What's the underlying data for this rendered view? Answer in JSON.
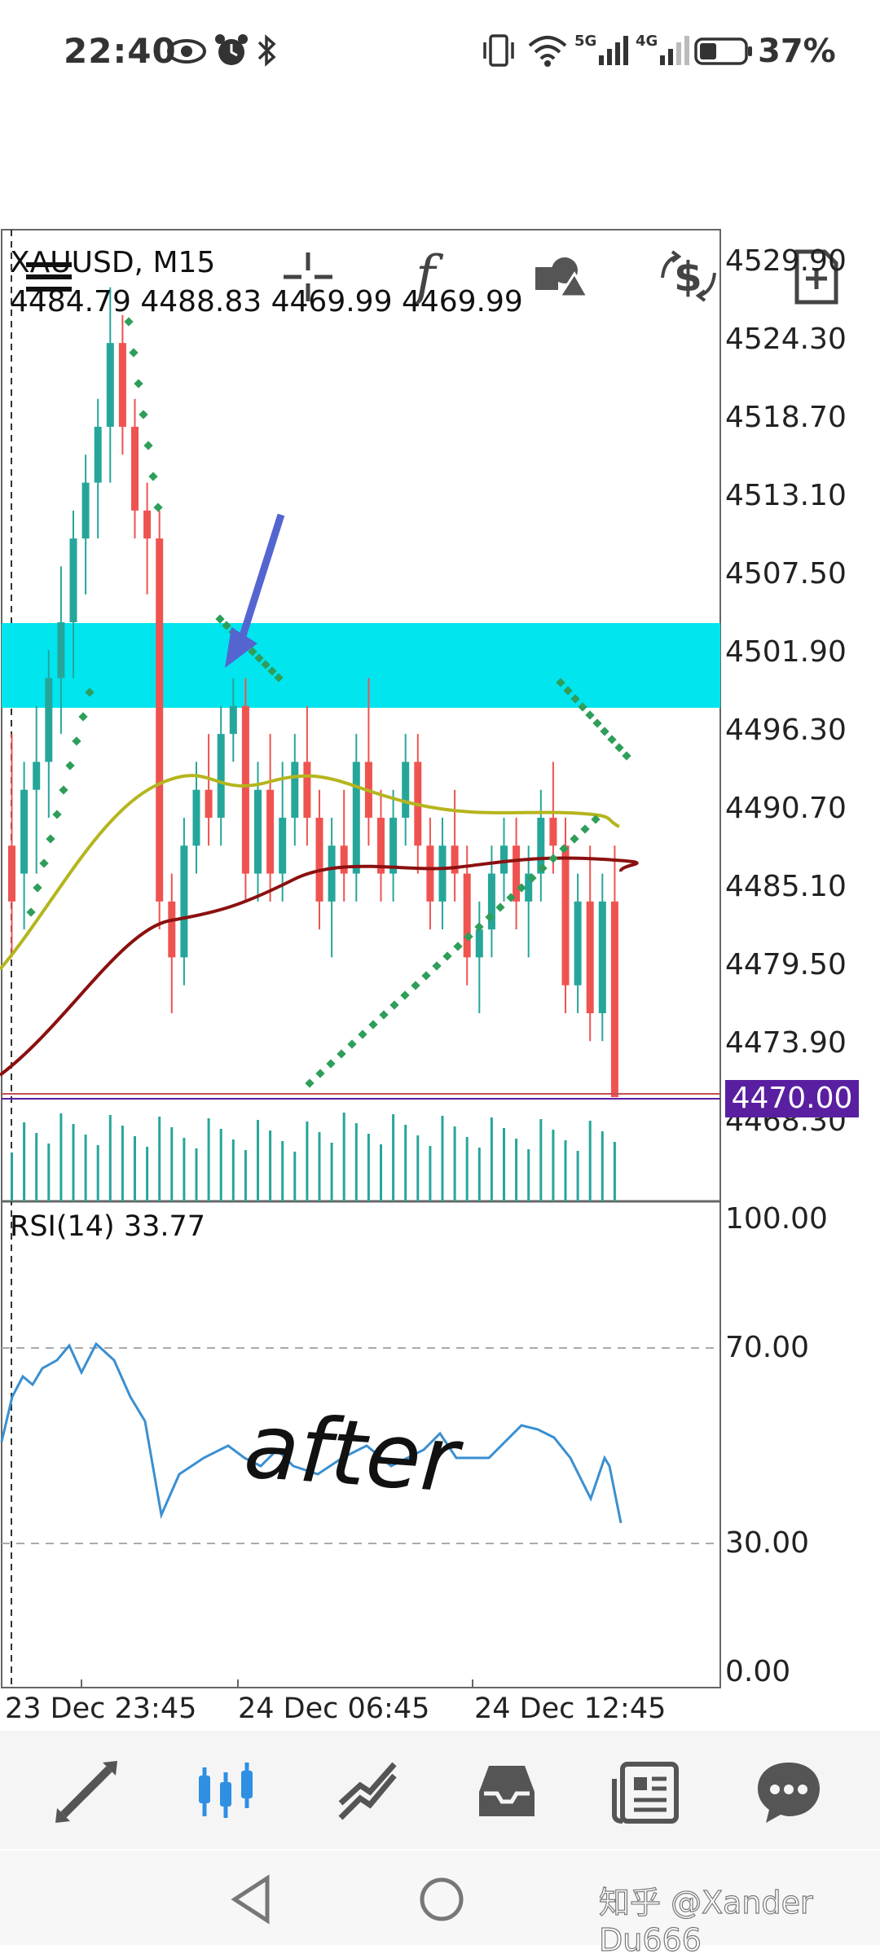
{
  "status_bar": {
    "time": "22:40",
    "battery_percent": "37%",
    "network_1": "5G",
    "network_2": "4G",
    "icons": [
      "eye-icon",
      "alarm-icon",
      "bluetooth-icon",
      "vibrate-icon",
      "wifi-icon",
      "signal-icon",
      "battery-icon"
    ]
  },
  "toolbar": {
    "buttons": [
      "menu-icon",
      "crosshair-icon",
      "indicators-icon",
      "objects-icon",
      "trade-icon",
      "new-order-icon"
    ]
  },
  "chart": {
    "symbol_line": "XAUUSD, M15",
    "ohlc_line": "4484.79 4488.83 4469.99 4469.99",
    "current_price": "4470.00",
    "price_labels": [
      "4529.90",
      "4524.30",
      "4518.70",
      "4513.10",
      "4507.50",
      "4501.90",
      "4496.30",
      "4490.70",
      "4485.10",
      "4479.50",
      "4473.90",
      "4468.30"
    ],
    "rsi_label": "RSI(14) 33.77",
    "rsi_levels": [
      "100.00",
      "70.00",
      "30.00",
      "0.00"
    ],
    "time_labels": [
      "23 Dec 23:45",
      "24 Dec 06:45",
      "24 Dec 12:45"
    ],
    "annotation_text": "after",
    "colors": {
      "bull": "#26a69a",
      "bear": "#ef5350",
      "zone": "#00e5ee",
      "ma_fast": "#b5b51e",
      "ma_slow": "#8b1010",
      "psar": "#2e9e5a",
      "rsi": "#3a8fd1",
      "price_tag": "#5a1fa0",
      "arrow": "#5565d0"
    }
  },
  "chart_data": {
    "type": "candlestick",
    "ylabel": "",
    "ylim": [
      4468.3,
      4529.9
    ],
    "rsi_series": {
      "name": "RSI(14)",
      "last_value": 33.77,
      "levels": [
        70,
        30
      ],
      "ylim": [
        0,
        100
      ]
    },
    "candles_ohlc": [
      [
        4488,
        4496,
        4480,
        4484
      ],
      [
        4486,
        4494,
        4482,
        4492
      ],
      [
        4492,
        4498,
        4486,
        4494
      ],
      [
        4494,
        4502,
        4490,
        4500
      ],
      [
        4500,
        4508,
        4496,
        4504
      ],
      [
        4504,
        4512,
        4500,
        4510
      ],
      [
        4510,
        4516,
        4506,
        4514
      ],
      [
        4514,
        4520,
        4510,
        4518
      ],
      [
        4518,
        4528,
        4514,
        4524
      ],
      [
        4524,
        4526,
        4516,
        4518
      ],
      [
        4518,
        4520,
        4510,
        4512
      ],
      [
        4512,
        4514,
        4506,
        4510
      ],
      [
        4510,
        4512,
        4482,
        4484
      ],
      [
        4484,
        4486,
        4476,
        4480
      ],
      [
        4480,
        4490,
        4478,
        4488
      ],
      [
        4488,
        4494,
        4486,
        4492
      ],
      [
        4492,
        4496,
        4488,
        4490
      ],
      [
        4490,
        4498,
        4488,
        4496
      ],
      [
        4496,
        4500,
        4494,
        4498
      ],
      [
        4498,
        4500,
        4484,
        4486
      ],
      [
        4486,
        4494,
        4484,
        4492
      ],
      [
        4492,
        4496,
        4484,
        4486
      ],
      [
        4486,
        4494,
        4484,
        4490
      ],
      [
        4490,
        4496,
        4488,
        4494
      ],
      [
        4494,
        4498,
        4488,
        4490
      ],
      [
        4490,
        4492,
        4482,
        4484
      ],
      [
        4484,
        4490,
        4480,
        4488
      ],
      [
        4488,
        4492,
        4484,
        4486
      ],
      [
        4486,
        4496,
        4484,
        4494
      ],
      [
        4494,
        4500,
        4488,
        4490
      ],
      [
        4490,
        4492,
        4484,
        4486
      ],
      [
        4486,
        4492,
        4484,
        4490
      ],
      [
        4490,
        4496,
        4488,
        4494
      ],
      [
        4494,
        4496,
        4486,
        4488
      ],
      [
        4488,
        4490,
        4482,
        4484
      ],
      [
        4484,
        4490,
        4482,
        4488
      ],
      [
        4488,
        4492,
        4484,
        4486
      ],
      [
        4486,
        4488,
        4478,
        4480
      ],
      [
        4480,
        4484,
        4476,
        4482
      ],
      [
        4482,
        4488,
        4480,
        4486
      ],
      [
        4486,
        4490,
        4484,
        4488
      ],
      [
        4488,
        4490,
        4482,
        4484
      ],
      [
        4484,
        4488,
        4480,
        4486
      ],
      [
        4486,
        4492,
        4484,
        4490
      ],
      [
        4490,
        4494,
        4486,
        4488
      ],
      [
        4488,
        4490,
        4476,
        4478
      ],
      [
        4478,
        4486,
        4476,
        4484
      ],
      [
        4484,
        4488,
        4474,
        4476
      ],
      [
        4476,
        4486,
        4474,
        4484
      ],
      [
        4484,
        4488,
        4469.99,
        4469.99
      ]
    ]
  },
  "bottom_nav": {
    "items": [
      "quotes-icon",
      "chart-icon",
      "trade-icon",
      "history-icon",
      "news-icon",
      "messages-icon"
    ],
    "active": 1
  },
  "watermark": "知乎 @Xander Du666"
}
